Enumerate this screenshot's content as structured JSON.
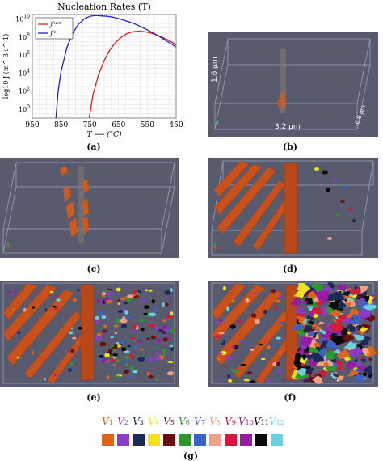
{
  "chart_data": {
    "type": "line",
    "title": "Nucleation Rates (T)",
    "xlabel": "T ⟶ (°C)",
    "ylabel": "log10 J (m^-3 s^-1)",
    "xlim": [
      950,
      450
    ],
    "ylim": [
      -1,
      10.5
    ],
    "xticks": [
      "950",
      "850",
      "750",
      "650",
      "550",
      "450"
    ],
    "yticks": [
      "10^0",
      "10^2",
      "10^4",
      "10^6",
      "10^8",
      "10^10"
    ],
    "grid": true,
    "legend_position": "top-left",
    "series": [
      {
        "name": "J^{fwm}",
        "color": "#e41a1c",
        "x": [
          752,
          740,
          720,
          700,
          680,
          660,
          640,
          620,
          600,
          580,
          560,
          540,
          520,
          500,
          480,
          460,
          450
        ],
        "y": [
          -1,
          1.5,
          3.8,
          5.4,
          6.6,
          7.4,
          8.0,
          8.4,
          8.6,
          8.65,
          8.6,
          8.45,
          8.25,
          8.0,
          7.7,
          7.35,
          7.1
        ]
      },
      {
        "name": "J^{fel}",
        "color": "#2020d0",
        "x": [
          868,
          860,
          850,
          830,
          810,
          790,
          770,
          750,
          730,
          710,
          690,
          670,
          650,
          630,
          610,
          590,
          570,
          550,
          530,
          510,
          490,
          470,
          450
        ],
        "y": [
          -1,
          2.0,
          4.2,
          6.8,
          8.4,
          9.4,
          10.0,
          10.3,
          10.4,
          10.35,
          10.3,
          10.2,
          10.05,
          9.85,
          9.65,
          9.4,
          9.1,
          8.8,
          8.45,
          8.1,
          7.7,
          7.3,
          6.9
        ]
      }
    ]
  },
  "scale_labels": {
    "height": "1.6 μm",
    "width": "3.2 μm",
    "depth": "0.8 μm"
  },
  "captions": [
    "(a)",
    "(b)",
    "(c)",
    "(d)",
    "(e)",
    "(f)",
    "(g)"
  ],
  "legend": {
    "items": [
      {
        "symbol": "V",
        "sub": "1",
        "color": "#e0651c"
      },
      {
        "symbol": "V",
        "sub": "2",
        "color": "#8a3cc8"
      },
      {
        "symbol": "V",
        "sub": "3",
        "color": "#1c2a5a"
      },
      {
        "symbol": "V",
        "sub": "4",
        "color": "#f2e21c"
      },
      {
        "symbol": "V",
        "sub": "5",
        "color": "#6a0e12"
      },
      {
        "symbol": "V",
        "sub": "6",
        "color": "#2a9a2a"
      },
      {
        "symbol": "V",
        "sub": "7",
        "color": "#3a62c8"
      },
      {
        "symbol": "V",
        "sub": "8",
        "color": "#f2a284"
      },
      {
        "symbol": "V",
        "sub": "9",
        "color": "#d21a3a"
      },
      {
        "symbol": "V",
        "sub": "10",
        "color": "#9a1aa8"
      },
      {
        "symbol": "V",
        "sub": "11",
        "color": "#0a0a0a"
      },
      {
        "symbol": "V",
        "sub": "12",
        "color": "#6ad0e0"
      }
    ]
  }
}
